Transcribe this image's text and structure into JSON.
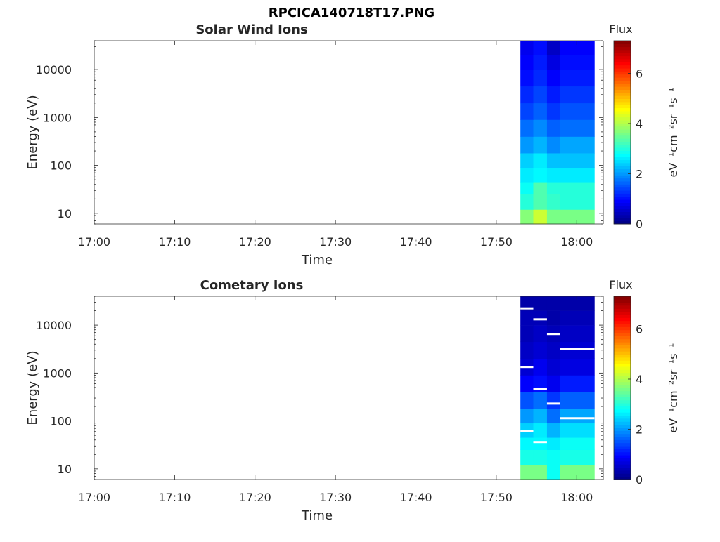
{
  "figure": {
    "title": "RPCICA140718T17.PNG"
  },
  "colormap": "jet",
  "chart_data": [
    {
      "type": "heatmap",
      "title": "Solar Wind Ions",
      "xlabel": "Time",
      "ylabel": "Energy (eV)",
      "x_ticks": [
        "17:00",
        "17:10",
        "17:20",
        "17:30",
        "17:40",
        "17:50",
        "18:00"
      ],
      "x_tick_minutes": [
        0,
        10,
        20,
        30,
        40,
        50,
        60
      ],
      "xlim_minutes": [
        0,
        63.3
      ],
      "y_scale": "log",
      "y_ticks": [
        "10",
        "100",
        "1000",
        "10000"
      ],
      "y_tick_values": [
        10,
        100,
        1000,
        10000
      ],
      "ylim": [
        6,
        40000
      ],
      "colorbar": {
        "label": "Flux",
        "units": "eV⁻¹cm⁻²sr⁻¹s⁻¹",
        "ticks": [
          "0",
          "2",
          "4",
          "6"
        ],
        "tick_values": [
          0,
          2,
          4,
          6
        ],
        "range": [
          0,
          7.3
        ]
      },
      "column_start_minutes": [
        53.0,
        54.6,
        56.3,
        57.9
      ],
      "column_end_minutes": [
        54.6,
        56.3,
        57.9,
        62.2
      ],
      "flux_bands": [
        {
          "e_low": 6,
          "e_high": 12,
          "flux": [
            3.7,
            4.2,
            3.6,
            3.6
          ]
        },
        {
          "e_low": 12,
          "e_high": 25,
          "flux": [
            3.0,
            3.3,
            3.1,
            3.0
          ]
        },
        {
          "e_low": 25,
          "e_high": 45,
          "flux": [
            2.8,
            3.3,
            3.0,
            3.0
          ]
        },
        {
          "e_low": 45,
          "e_high": 90,
          "flux": [
            2.6,
            2.7,
            2.6,
            2.6
          ]
        },
        {
          "e_low": 90,
          "e_high": 180,
          "flux": [
            2.4,
            2.6,
            2.3,
            2.3
          ]
        },
        {
          "e_low": 180,
          "e_high": 400,
          "flux": [
            2.0,
            2.2,
            1.9,
            2.1
          ]
        },
        {
          "e_low": 400,
          "e_high": 900,
          "flux": [
            1.7,
            1.9,
            1.6,
            1.7
          ]
        },
        {
          "e_low": 900,
          "e_high": 2000,
          "flux": [
            1.4,
            1.6,
            1.3,
            1.5
          ]
        },
        {
          "e_low": 2000,
          "e_high": 4500,
          "flux": [
            1.2,
            1.4,
            1.1,
            1.3
          ]
        },
        {
          "e_low": 4500,
          "e_high": 10000,
          "flux": [
            1.0,
            1.2,
            0.9,
            1.1
          ]
        },
        {
          "e_low": 10000,
          "e_high": 20000,
          "flux": [
            0.9,
            1.1,
            0.7,
            1.0
          ]
        },
        {
          "e_low": 20000,
          "e_high": 40000,
          "flux": [
            0.8,
            1.0,
            0.5,
            0.9
          ]
        }
      ]
    },
    {
      "type": "heatmap",
      "title": "Cometary Ions",
      "xlabel": "Time",
      "ylabel": "Energy (eV)",
      "x_ticks": [
        "17:00",
        "17:10",
        "17:20",
        "17:30",
        "17:40",
        "17:50",
        "18:00"
      ],
      "x_tick_minutes": [
        0,
        10,
        20,
        30,
        40,
        50,
        60
      ],
      "xlim_minutes": [
        0,
        63.3
      ],
      "y_scale": "log",
      "y_ticks": [
        "10",
        "100",
        "1000",
        "10000"
      ],
      "y_tick_values": [
        10,
        100,
        1000,
        10000
      ],
      "ylim": [
        6,
        40000
      ],
      "colorbar": {
        "label": "Flux",
        "units": "eV⁻¹cm⁻²sr⁻¹s⁻¹",
        "ticks": [
          "0",
          "2",
          "4",
          "6"
        ],
        "tick_values": [
          0,
          2,
          4,
          6
        ],
        "range": [
          0,
          7.3
        ]
      },
      "column_start_minutes": [
        53.0,
        54.6,
        56.3,
        57.9
      ],
      "column_end_minutes": [
        54.6,
        56.3,
        57.9,
        62.2
      ],
      "flux_bands": [
        {
          "e_low": 6,
          "e_high": 12,
          "flux": [
            3.6,
            3.6,
            2.8,
            3.6
          ]
        },
        {
          "e_low": 12,
          "e_high": 25,
          "flux": [
            2.9,
            2.9,
            2.8,
            2.9
          ]
        },
        {
          "e_low": 25,
          "e_high": 45,
          "flux": [
            2.7,
            2.7,
            2.6,
            2.8
          ]
        },
        {
          "e_low": 45,
          "e_high": 90,
          "flux": [
            2.4,
            2.6,
            2.2,
            2.5
          ]
        },
        {
          "e_low": 90,
          "e_high": 180,
          "flux": [
            2.0,
            2.2,
            1.7,
            2.1
          ]
        },
        {
          "e_low": 180,
          "e_high": 400,
          "flux": [
            1.5,
            1.7,
            1.3,
            1.6
          ]
        },
        {
          "e_low": 400,
          "e_high": 900,
          "flux": [
            0.9,
            1.0,
            0.8,
            1.1
          ]
        },
        {
          "e_low": 900,
          "e_high": 2000,
          "flux": [
            0.6,
            0.8,
            0.6,
            0.7
          ]
        },
        {
          "e_low": 2000,
          "e_high": 4500,
          "flux": [
            0.5,
            0.6,
            0.5,
            0.6
          ]
        },
        {
          "e_low": 4500,
          "e_high": 10000,
          "flux": [
            0.4,
            0.5,
            0.4,
            0.5
          ]
        },
        {
          "e_low": 10000,
          "e_high": 20000,
          "flux": [
            0.4,
            0.4,
            0.3,
            0.4
          ]
        },
        {
          "e_low": 20000,
          "e_high": 40000,
          "flux": [
            0.3,
            0.3,
            0.3,
            0.3
          ]
        }
      ]
    }
  ]
}
